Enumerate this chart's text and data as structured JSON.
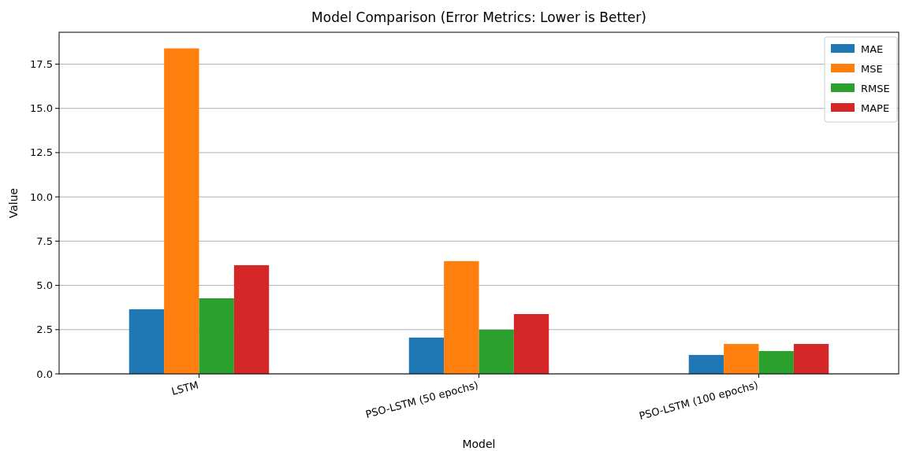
{
  "chart_data": {
    "type": "bar",
    "title": "Model Comparison (Error Metrics: Lower is Better)",
    "xlabel": "Model",
    "ylabel": "Value",
    "categories": [
      "LSTM",
      "PSO-LSTM (50 epochs)",
      "PSO-LSTM (100 epochs)"
    ],
    "series": [
      {
        "name": "MAE",
        "color": "#1f77b4",
        "values": [
          3.65,
          2.05,
          1.07
        ]
      },
      {
        "name": "MSE",
        "color": "#ff7f0e",
        "values": [
          18.39,
          6.37,
          1.69
        ]
      },
      {
        "name": "RMSE",
        "color": "#2ca02c",
        "values": [
          4.27,
          2.49,
          1.29
        ]
      },
      {
        "name": "MAPE",
        "color": "#d62728",
        "values": [
          6.14,
          3.38,
          1.69
        ]
      }
    ],
    "ylim": [
      0,
      19.3
    ],
    "yticks": [
      {
        "value": 0,
        "label": "0.0"
      },
      {
        "value": 2.5,
        "label": "2.5"
      },
      {
        "value": 5,
        "label": "5.0"
      },
      {
        "value": 7.5,
        "label": "7.5"
      },
      {
        "value": 10,
        "label": "10.0"
      },
      {
        "value": 12.5,
        "label": "12.5"
      },
      {
        "value": 15,
        "label": "15.0"
      },
      {
        "value": 17.5,
        "label": "17.5"
      }
    ],
    "grid": "y",
    "legend": "top right"
  }
}
